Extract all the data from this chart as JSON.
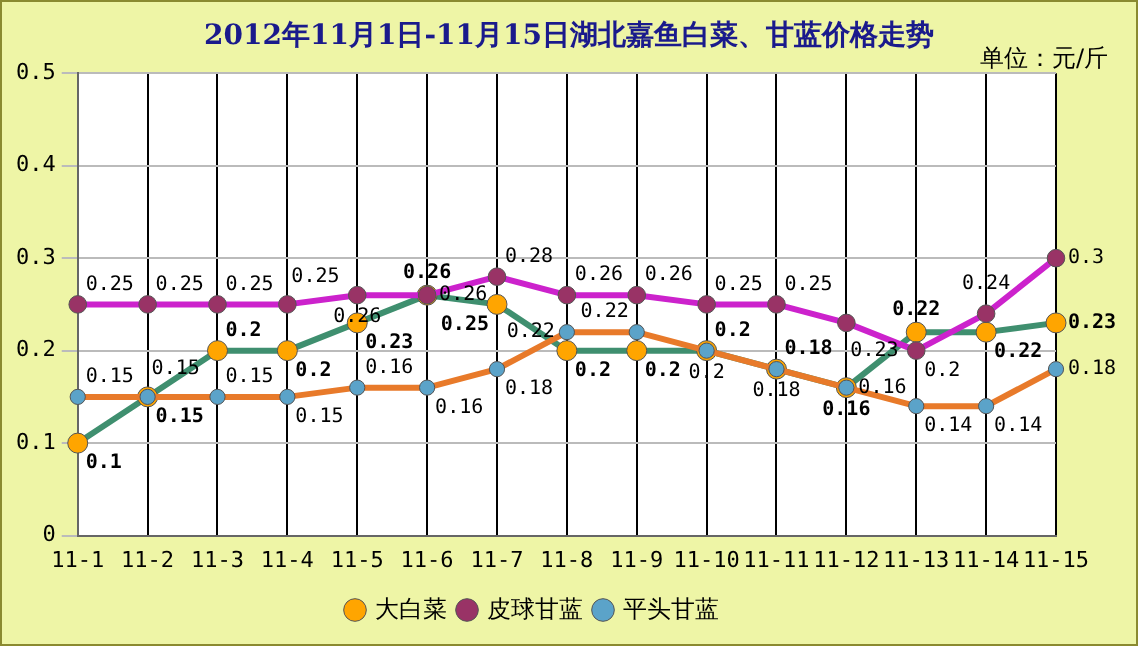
{
  "chart_data": {
    "type": "line",
    "title": "2012年11月1日-11月15日湖北嘉鱼白菜、甘蓝价格走势",
    "annotations": [
      "单位：元/斤"
    ],
    "categories": [
      "11-1",
      "11-2",
      "11-3",
      "11-4",
      "11-5",
      "11-6",
      "11-7",
      "11-8",
      "11-9",
      "11-10",
      "11-11",
      "11-12",
      "11-13",
      "11-14",
      "11-15"
    ],
    "series": [
      {
        "name": "大白菜",
        "color": "#3f8f6f",
        "values": [
          0.1,
          0.15,
          0.2,
          0.2,
          0.23,
          0.26,
          0.25,
          0.2,
          0.2,
          0.2,
          0.18,
          0.16,
          0.22,
          0.22,
          0.23
        ]
      },
      {
        "name": "皮球甘蓝",
        "color": "#cc22cc",
        "values": [
          0.25,
          0.25,
          0.25,
          0.25,
          0.26,
          0.26,
          0.28,
          0.26,
          0.26,
          0.25,
          0.25,
          0.23,
          0.2,
          0.24,
          0.3
        ]
      },
      {
        "name": "平头甘蓝",
        "color": "#e87a2a",
        "values": [
          0.15,
          0.15,
          0.15,
          0.15,
          0.16,
          0.16,
          0.18,
          0.22,
          0.22,
          0.2,
          0.18,
          0.16,
          0.14,
          0.14,
          0.18
        ]
      }
    ],
    "ylim": [
      0,
      0.5
    ],
    "yticks": [
      0,
      0.1,
      0.2,
      0.3,
      0.4,
      0.5
    ],
    "grid": true,
    "legend": "bottom",
    "data_labels": true,
    "marker": "circle"
  }
}
